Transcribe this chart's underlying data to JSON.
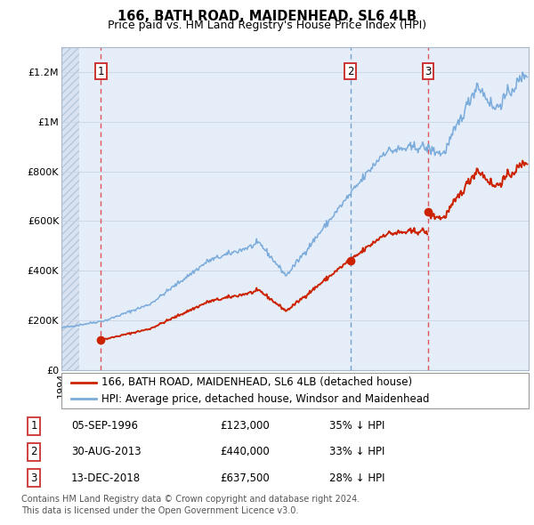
{
  "title": "166, BATH ROAD, MAIDENHEAD, SL6 4LB",
  "subtitle": "Price paid vs. HM Land Registry's House Price Index (HPI)",
  "ylim": [
    0,
    1300000
  ],
  "yticks": [
    0,
    200000,
    400000,
    600000,
    800000,
    1000000,
    1200000
  ],
  "ytick_labels": [
    "£0",
    "£200K",
    "£400K",
    "£600K",
    "£800K",
    "£1M",
    "£1.2M"
  ],
  "xlim_start": 1994.0,
  "xlim_end": 2025.8,
  "hpi_line_color": "#7aabdb",
  "price_line_color": "#cc2200",
  "sale_marker_color": "#cc2200",
  "sale1_date": 1996.68,
  "sale1_price": 123000,
  "sale2_date": 2013.66,
  "sale2_price": 440000,
  "sale3_date": 2018.96,
  "sale3_price": 637500,
  "legend_label1": "166, BATH ROAD, MAIDENHEAD, SL6 4LB (detached house)",
  "legend_label2": "HPI: Average price, detached house, Windsor and Maidenhead",
  "table_rows": [
    {
      "num": "1",
      "date": "05-SEP-1996",
      "price": "£123,000",
      "hpi": "35% ↓ HPI"
    },
    {
      "num": "2",
      "date": "30-AUG-2013",
      "price": "£440,000",
      "hpi": "33% ↓ HPI"
    },
    {
      "num": "3",
      "date": "13-DEC-2018",
      "price": "£637,500",
      "hpi": "28% ↓ HPI"
    }
  ],
  "footnote": "Contains HM Land Registry data © Crown copyright and database right 2024.\nThis data is licensed under the Open Government Licence v3.0.",
  "title_fontsize": 10.5,
  "subtitle_fontsize": 9,
  "tick_fontsize": 8,
  "legend_fontsize": 8.5,
  "table_fontsize": 8.5,
  "footnote_fontsize": 7
}
